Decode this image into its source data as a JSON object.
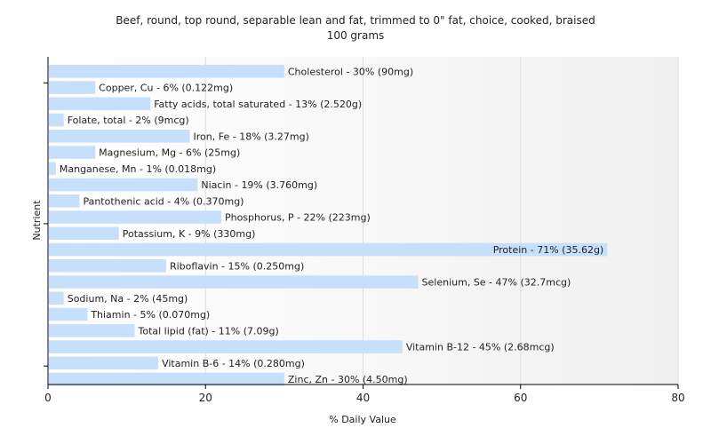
{
  "chart_data": {
    "type": "bar",
    "orientation": "horizontal",
    "title": "Beef, round, top round, separable lean and fat, trimmed to 0\" fat, choice, cooked, braised",
    "subtitle": "100 grams",
    "xlabel": "% Daily Value",
    "ylabel": "Nutrient",
    "xlim": [
      0,
      80
    ],
    "xticks": [
      0,
      20,
      40,
      60,
      80
    ],
    "grid": true,
    "bar_color": "#c6dffa",
    "categories": [
      "Cholesterol",
      "Copper, Cu",
      "Fatty acids, total saturated",
      "Folate, total",
      "Iron, Fe",
      "Magnesium, Mg",
      "Manganese, Mn",
      "Niacin",
      "Pantothenic acid",
      "Phosphorus, P",
      "Potassium, K",
      "Protein",
      "Riboflavin",
      "Selenium, Se",
      "Sodium, Na",
      "Thiamin",
      "Total lipid (fat)",
      "Vitamin B-12",
      "Vitamin B-6",
      "Zinc, Zn"
    ],
    "values": [
      30,
      6,
      13,
      2,
      18,
      6,
      1,
      19,
      4,
      22,
      9,
      71,
      15,
      47,
      2,
      5,
      11,
      45,
      14,
      30
    ],
    "data_labels": [
      "Cholesterol - 30% (90mg)",
      "Copper, Cu - 6% (0.122mg)",
      "Fatty acids, total saturated - 13% (2.520g)",
      "Folate, total - 2% (9mcg)",
      "Iron, Fe - 18% (3.27mg)",
      "Magnesium, Mg - 6% (25mg)",
      "Manganese, Mn - 1% (0.018mg)",
      "Niacin - 19% (3.760mg)",
      "Pantothenic acid - 4% (0.370mg)",
      "Phosphorus, P - 22% (223mg)",
      "Potassium, K - 9% (330mg)",
      "Protein - 71% (35.62g)",
      "Riboflavin - 15% (0.250mg)",
      "Selenium, Se - 47% (32.7mcg)",
      "Sodium, Na - 2% (45mg)",
      "Thiamin - 5% (0.070mg)",
      "Total lipid (fat) - 11% (7.09g)",
      "Vitamin B-12 - 45% (2.68mcg)",
      "Vitamin B-6 - 14% (0.280mg)",
      "Zinc, Zn - 30% (4.50mg)"
    ]
  }
}
